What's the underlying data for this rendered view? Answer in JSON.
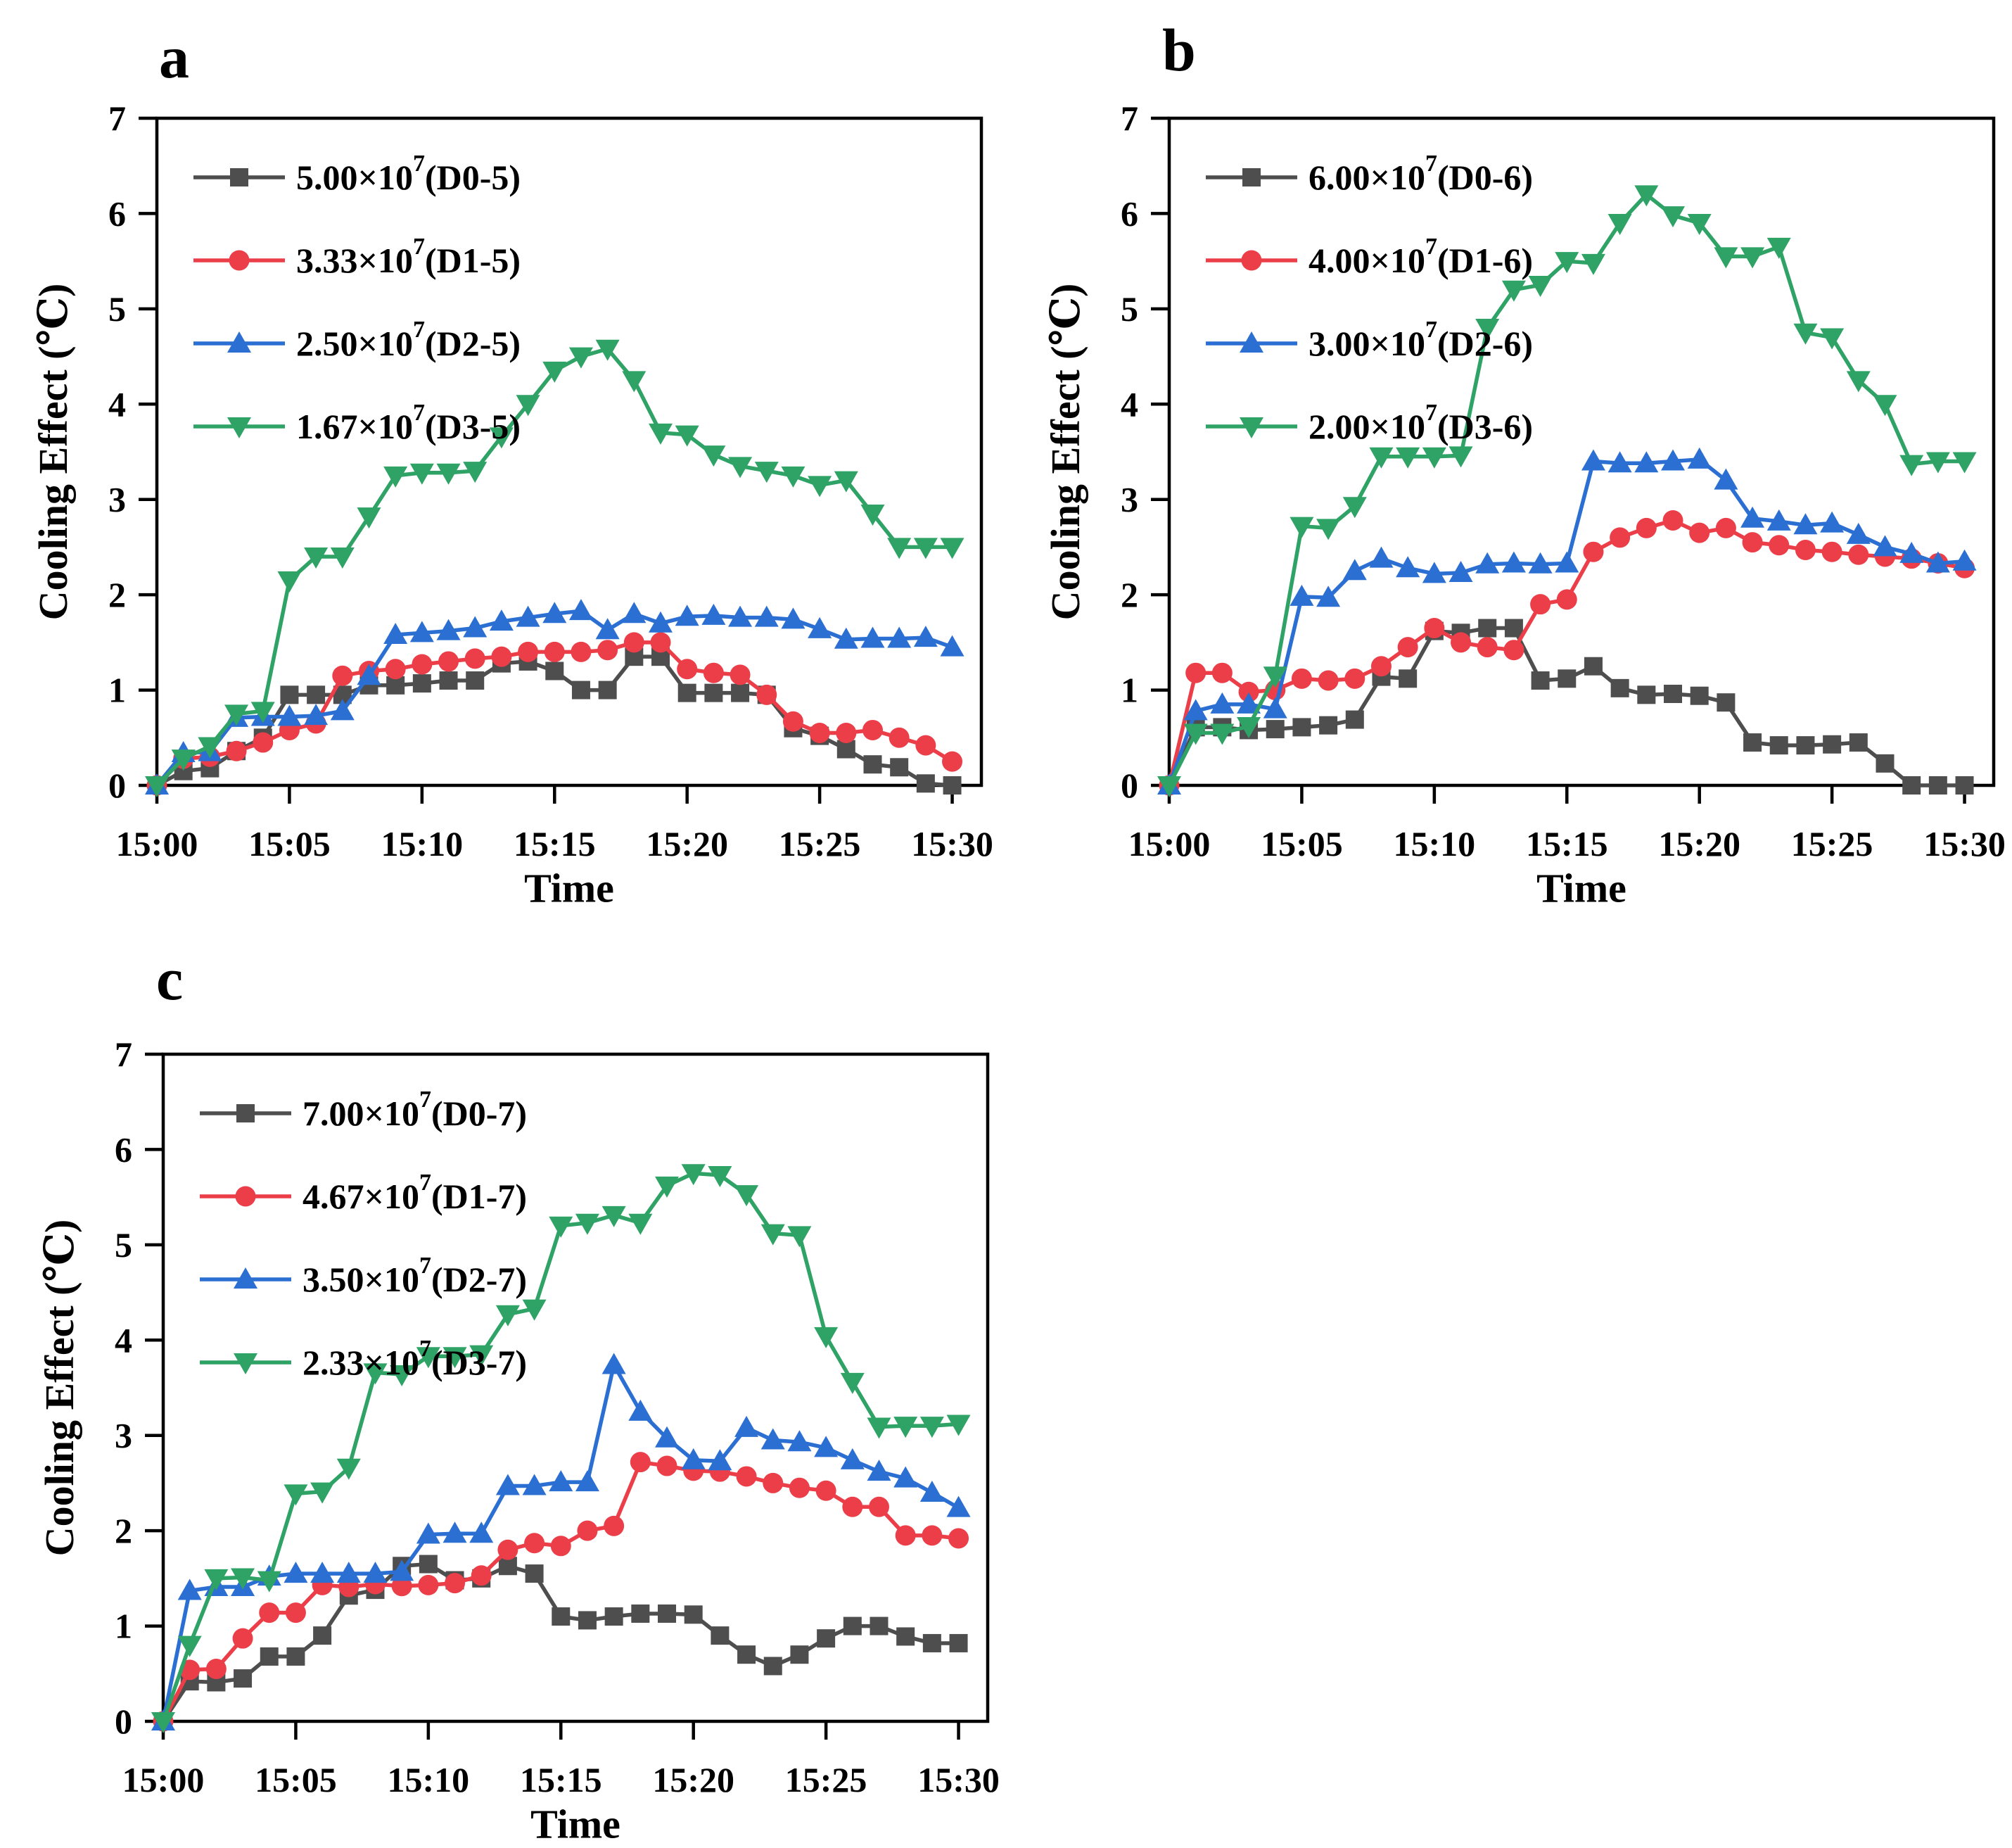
{
  "figure": {
    "background": "#ffffff",
    "axis_color": "#000000",
    "panel_letters": [
      "a",
      "b",
      "c"
    ]
  },
  "chart_data": [
    {
      "panel_letter": "a",
      "type": "line",
      "title": "",
      "xlabel": "Time",
      "ylabel": "Cooling Effect (℃)",
      "ylim": [
        0,
        7
      ],
      "y_ticks": [
        0,
        1,
        2,
        3,
        4,
        5,
        6,
        7
      ],
      "x_tick_labels": [
        "15:00",
        "15:05",
        "15:10",
        "15:15",
        "15:20",
        "15:25",
        "15:30"
      ],
      "x_sample_interval_minutes": 1,
      "grid": false,
      "legend_position": "upper-left-inside",
      "series": [
        {
          "id": "D0-5",
          "name": "5.00×10⁷(D0-5)",
          "legend": {
            "base": "5.00×10",
            "exp": "7",
            "suffix": "(D0-5)"
          },
          "marker": "square",
          "color": "#4e4e4e",
          "values": [
            0,
            0.15,
            0.18,
            0.36,
            0.5,
            0.95,
            0.95,
            0.95,
            1.05,
            1.05,
            1.07,
            1.1,
            1.1,
            1.28,
            1.3,
            1.2,
            1.0,
            1.0,
            1.35,
            1.35,
            0.97,
            0.97,
            0.97,
            0.95,
            0.6,
            0.52,
            0.38,
            0.22,
            0.19,
            0.02,
            0.0
          ]
        },
        {
          "id": "D1-5",
          "name": "3.33×10⁷(D1-5)",
          "legend": {
            "base": "3.33×10",
            "exp": "7",
            "suffix": "(D1-5)"
          },
          "marker": "circle",
          "color": "#ec3e48",
          "values": [
            0,
            0.28,
            0.3,
            0.36,
            0.45,
            0.58,
            0.65,
            1.15,
            1.2,
            1.22,
            1.27,
            1.3,
            1.33,
            1.35,
            1.4,
            1.4,
            1.4,
            1.42,
            1.5,
            1.5,
            1.22,
            1.18,
            1.16,
            0.95,
            0.67,
            0.55,
            0.55,
            0.58,
            0.5,
            0.42,
            0.25
          ]
        },
        {
          "id": "D2-5",
          "name": "2.50×10⁷(D2-5)",
          "legend": {
            "base": "2.50×10",
            "exp": "7",
            "suffix": "(D2-5)"
          },
          "marker": "triangle-up",
          "color": "#2b6fd3",
          "values": [
            0,
            0.34,
            0.35,
            0.71,
            0.72,
            0.72,
            0.73,
            0.78,
            1.15,
            1.58,
            1.6,
            1.62,
            1.65,
            1.72,
            1.76,
            1.8,
            1.83,
            1.63,
            1.8,
            1.7,
            1.77,
            1.78,
            1.76,
            1.76,
            1.74,
            1.64,
            1.53,
            1.54,
            1.54,
            1.55,
            1.45
          ]
        },
        {
          "id": "D3-5",
          "name": "1.67×10⁷(D3-5)",
          "legend": {
            "base": "1.67×10",
            "exp": "7",
            "suffix": "(D3-5)"
          },
          "marker": "triangle-down",
          "color": "#2fa266",
          "values": [
            0,
            0.28,
            0.41,
            0.75,
            0.78,
            2.15,
            2.4,
            2.4,
            2.82,
            3.25,
            3.28,
            3.28,
            3.3,
            3.66,
            4.0,
            4.35,
            4.5,
            4.58,
            4.25,
            3.7,
            3.68,
            3.47,
            3.35,
            3.3,
            3.25,
            3.15,
            3.2,
            2.85,
            2.5,
            2.5,
            2.5
          ]
        }
      ]
    },
    {
      "panel_letter": "b",
      "type": "line",
      "title": "",
      "xlabel": "Time",
      "ylabel": "Cooling Effect (℃)",
      "ylim": [
        0,
        7
      ],
      "y_ticks": [
        0,
        1,
        2,
        3,
        4,
        5,
        6,
        7
      ],
      "x_tick_labels": [
        "15:00",
        "15:05",
        "15:10",
        "15:15",
        "15:20",
        "15:25",
        "15:30"
      ],
      "x_sample_interval_minutes": 1,
      "grid": false,
      "legend_position": "upper-left-inside",
      "series": [
        {
          "id": "D0-6",
          "name": "6.00×10⁷(D0-6)",
          "legend": {
            "base": "6.00×10",
            "exp": "7",
            "suffix": "(D0-6)"
          },
          "marker": "square",
          "color": "#4e4e4e",
          "values": [
            0,
            0.61,
            0.61,
            0.58,
            0.59,
            0.61,
            0.63,
            0.69,
            1.14,
            1.12,
            1.62,
            1.6,
            1.65,
            1.65,
            1.1,
            1.12,
            1.25,
            1.02,
            0.95,
            0.96,
            0.94,
            0.87,
            0.45,
            0.42,
            0.42,
            0.43,
            0.45,
            0.23,
            0.0,
            0.0,
            0.0
          ]
        },
        {
          "id": "D1-6",
          "name": "4.00×10⁷(D1-6)",
          "legend": {
            "base": "4.00×10",
            "exp": "7",
            "suffix": "(D1-6)"
          },
          "marker": "circle",
          "color": "#ec3e48",
          "values": [
            0,
            1.18,
            1.18,
            0.98,
            1.0,
            1.12,
            1.1,
            1.12,
            1.25,
            1.45,
            1.65,
            1.5,
            1.45,
            1.42,
            1.9,
            1.95,
            2.45,
            2.6,
            2.7,
            2.78,
            2.65,
            2.7,
            2.55,
            2.52,
            2.47,
            2.45,
            2.42,
            2.4,
            2.38,
            2.33,
            2.28
          ]
        },
        {
          "id": "D2-6",
          "name": "3.00×10⁷(D2-6)",
          "legend": {
            "base": "3.00×10",
            "exp": "7",
            "suffix": "(D2-6)"
          },
          "marker": "triangle-up",
          "color": "#2b6fd3",
          "values": [
            0,
            0.78,
            0.85,
            0.85,
            0.8,
            1.98,
            1.97,
            2.25,
            2.38,
            2.28,
            2.22,
            2.23,
            2.32,
            2.33,
            2.32,
            2.33,
            3.4,
            3.38,
            3.38,
            3.4,
            3.42,
            3.2,
            2.8,
            2.77,
            2.73,
            2.75,
            2.63,
            2.5,
            2.43,
            2.33,
            2.35
          ]
        },
        {
          "id": "D3-6",
          "name": "2.00×10⁷(D3-6)",
          "legend": {
            "base": "2.00×10",
            "exp": "7",
            "suffix": "(D3-6)"
          },
          "marker": "triangle-down",
          "color": "#2fa266",
          "values": [
            0,
            0.55,
            0.55,
            0.62,
            1.15,
            2.72,
            2.7,
            2.93,
            3.45,
            3.45,
            3.45,
            3.46,
            4.8,
            5.2,
            5.25,
            5.5,
            5.48,
            5.9,
            6.2,
            5.98,
            5.9,
            5.55,
            5.55,
            5.65,
            4.75,
            4.7,
            4.25,
            4.0,
            3.37,
            3.4,
            3.4
          ]
        }
      ]
    },
    {
      "panel_letter": "c",
      "type": "line",
      "title": "",
      "xlabel": "Time",
      "ylabel": "Cooling Effect (℃)",
      "ylim": [
        0,
        7
      ],
      "y_ticks": [
        0,
        1,
        2,
        3,
        4,
        5,
        6,
        7
      ],
      "x_tick_labels": [
        "15:00",
        "15:05",
        "15:10",
        "15:15",
        "15:20",
        "15:25",
        "15:30"
      ],
      "x_sample_interval_minutes": 1,
      "grid": false,
      "legend_position": "upper-left-inside",
      "series": [
        {
          "id": "D0-7",
          "name": "7.00×10⁷(D0-7)",
          "legend": {
            "base": "7.00×10",
            "exp": "7",
            "suffix": "(D0-7)"
          },
          "marker": "square",
          "color": "#4e4e4e",
          "values": [
            0,
            0.42,
            0.41,
            0.45,
            0.68,
            0.68,
            0.9,
            1.32,
            1.38,
            1.63,
            1.65,
            1.48,
            1.5,
            1.63,
            1.55,
            1.1,
            1.06,
            1.1,
            1.13,
            1.13,
            1.12,
            0.9,
            0.7,
            0.58,
            0.7,
            0.87,
            1.0,
            1.0,
            0.89,
            0.82,
            0.82
          ]
        },
        {
          "id": "D1-7",
          "name": "4.67×10⁷(D1-7)",
          "legend": {
            "base": "4.67×10",
            "exp": "7",
            "suffix": "(D1-7)"
          },
          "marker": "circle",
          "color": "#ec3e48",
          "values": [
            0,
            0.54,
            0.55,
            0.87,
            1.14,
            1.14,
            1.43,
            1.41,
            1.44,
            1.42,
            1.43,
            1.45,
            1.53,
            1.8,
            1.87,
            1.84,
            2.0,
            2.05,
            2.72,
            2.68,
            2.63,
            2.62,
            2.57,
            2.5,
            2.45,
            2.42,
            2.25,
            2.25,
            1.95,
            1.95,
            1.92
          ]
        },
        {
          "id": "D2-7",
          "name": "3.50×10⁷(D2-7)",
          "legend": {
            "base": "3.50×10",
            "exp": "7",
            "suffix": "(D2-7)"
          },
          "marker": "triangle-up",
          "color": "#2b6fd3",
          "values": [
            0,
            1.37,
            1.41,
            1.41,
            1.52,
            1.55,
            1.55,
            1.55,
            1.55,
            1.57,
            1.96,
            1.97,
            1.97,
            2.47,
            2.47,
            2.51,
            2.51,
            3.74,
            3.25,
            2.97,
            2.74,
            2.73,
            3.08,
            2.95,
            2.93,
            2.87,
            2.74,
            2.62,
            2.55,
            2.4,
            2.24
          ]
        },
        {
          "id": "D3-7",
          "name": "2.33×10⁷(D3-7)",
          "legend": {
            "base": "2.33×10",
            "exp": "7",
            "suffix": "(D3-7)"
          },
          "marker": "triangle-down",
          "color": "#2fa266",
          "values": [
            0,
            0.8,
            1.5,
            1.51,
            1.48,
            2.39,
            2.41,
            2.66,
            3.66,
            3.64,
            3.83,
            3.83,
            3.85,
            4.27,
            4.33,
            5.2,
            5.23,
            5.31,
            5.23,
            5.62,
            5.75,
            5.73,
            5.53,
            5.12,
            5.1,
            4.04,
            3.56,
            3.09,
            3.1,
            3.1,
            3.12
          ]
        }
      ]
    }
  ]
}
